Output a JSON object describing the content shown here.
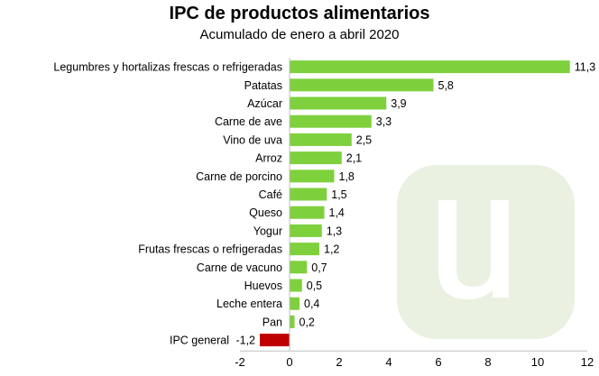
{
  "chart_data": {
    "type": "bar",
    "orientation": "horizontal",
    "title": "IPC de productos alimentarios",
    "subtitle": "Acumulado de enero a abril 2020",
    "categories": [
      "Legumbres y hortalizas frescas o refrigeradas",
      "Patatas",
      "Azúcar",
      "Carne de ave",
      "Vino de uva",
      "Arroz",
      "Carne de porcino",
      "Café",
      "Queso",
      "Yogur",
      "Frutas frescas o refrigeradas",
      "Carne de vacuno",
      "Huevos",
      "Leche entera",
      "Pan",
      "IPC general"
    ],
    "values": [
      11.3,
      5.8,
      3.9,
      3.3,
      2.5,
      2.1,
      1.8,
      1.5,
      1.4,
      1.3,
      1.2,
      0.7,
      0.5,
      0.4,
      0.2,
      -1.2
    ],
    "data_labels": [
      "11,3",
      "5,8",
      "3,9",
      "3,3",
      "2,5",
      "2,1",
      "1,8",
      "1,5",
      "1,4",
      "1,3",
      "1,2",
      "0,7",
      "0,5",
      "0,4",
      "0,2",
      "-1,2"
    ],
    "xlim": [
      -2,
      12
    ],
    "xticks": [
      -2,
      0,
      2,
      4,
      6,
      8,
      10,
      12
    ],
    "xlabel": "",
    "ylabel": "",
    "grid": false,
    "legend": "none",
    "colors": {
      "positive": "#7ed03c",
      "negative": "#c00000",
      "watermark": "#eaf1e1"
    }
  }
}
